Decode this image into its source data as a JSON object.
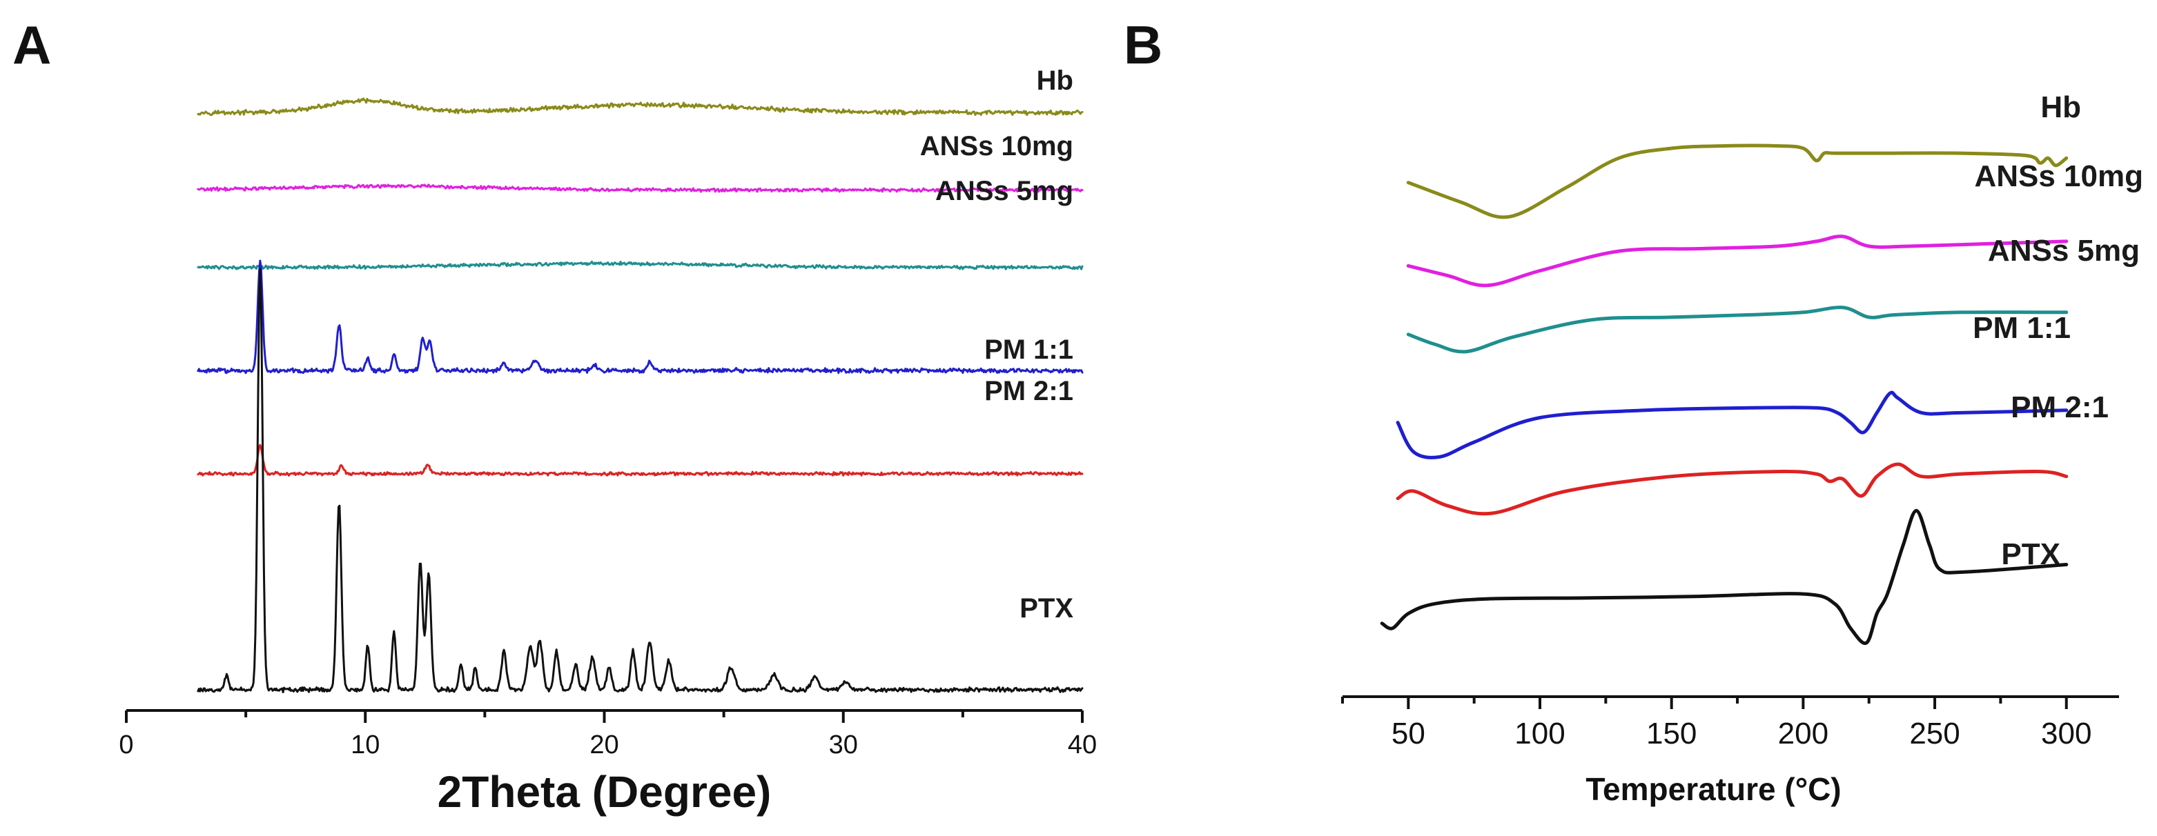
{
  "chart_data": [
    {
      "panel": "A",
      "type": "line",
      "title": "",
      "xlabel": "2Theta (Degree)",
      "ylabel": "",
      "xlim": [
        0,
        40
      ],
      "xticks": [
        "0",
        "10",
        "20",
        "30",
        "40"
      ],
      "y_axis": "none (stacked offset traces)",
      "series": [
        {
          "name": "Hb",
          "color": "#8a8a1a",
          "profile": "amorphous",
          "baseline": 0.895,
          "humps": [
            [
              10,
              1.6,
              0.018
            ],
            [
              22,
              4,
              0.012
            ]
          ],
          "noise": 0.004
        },
        {
          "name": "ANSs  10mg",
          "color": "#e020e0",
          "profile": "amorphous",
          "baseline": 0.775,
          "humps": [
            [
              11,
              4,
              0.006
            ]
          ],
          "noise": 0.003
        },
        {
          "name": "ANSs  5mg",
          "color": "#1f8f8f",
          "profile": "amorphous",
          "baseline": 0.655,
          "humps": [
            [
              20,
              5,
              0.006
            ]
          ],
          "noise": 0.003
        },
        {
          "name": "PM 1:1",
          "color": "#1f1fcf",
          "profile": "crystalline",
          "baseline": 0.495,
          "peaks": [
            [
              5.6,
              0.17,
              0.1
            ],
            [
              8.9,
              0.07,
              0.1
            ],
            [
              10.1,
              0.02,
              0.08
            ],
            [
              11.2,
              0.025,
              0.08
            ],
            [
              12.4,
              0.05,
              0.1
            ],
            [
              12.7,
              0.045,
              0.1
            ],
            [
              15.8,
              0.012,
              0.1
            ],
            [
              17.1,
              0.015,
              0.15
            ],
            [
              19.6,
              0.01,
              0.1
            ],
            [
              21.9,
              0.013,
              0.1
            ]
          ],
          "noise": 0.004
        },
        {
          "name": "PM 2:1",
          "color": "#dd2222",
          "profile": "crystalline",
          "baseline": 0.335,
          "peaks": [
            [
              5.6,
              0.045,
              0.1
            ],
            [
              9.0,
              0.012,
              0.1
            ],
            [
              12.6,
              0.012,
              0.12
            ]
          ],
          "noise": 0.003
        },
        {
          "name": "PTX",
          "color": "#111111",
          "profile": "crystalline",
          "baseline": 0.0,
          "peaks": [
            [
              4.2,
              0.025,
              0.08
            ],
            [
              5.6,
              0.65,
              0.1
            ],
            [
              8.9,
              0.29,
              0.1
            ],
            [
              10.1,
              0.07,
              0.08
            ],
            [
              11.2,
              0.09,
              0.08
            ],
            [
              12.3,
              0.2,
              0.1
            ],
            [
              12.65,
              0.18,
              0.1
            ],
            [
              14.0,
              0.04,
              0.08
            ],
            [
              14.6,
              0.035,
              0.08
            ],
            [
              15.8,
              0.06,
              0.1
            ],
            [
              16.9,
              0.07,
              0.12
            ],
            [
              17.3,
              0.075,
              0.12
            ],
            [
              18.0,
              0.06,
              0.1
            ],
            [
              18.8,
              0.04,
              0.1
            ],
            [
              19.5,
              0.05,
              0.12
            ],
            [
              20.2,
              0.035,
              0.1
            ],
            [
              21.2,
              0.06,
              0.1
            ],
            [
              21.9,
              0.075,
              0.12
            ],
            [
              22.7,
              0.045,
              0.12
            ],
            [
              25.3,
              0.035,
              0.15
            ],
            [
              27.1,
              0.025,
              0.15
            ],
            [
              28.8,
              0.02,
              0.15
            ],
            [
              30.1,
              0.012,
              0.15
            ]
          ],
          "noise": 0.004
        }
      ],
      "labels": [
        {
          "series": "Hb",
          "text": "Hb"
        },
        {
          "series": "ANSs  10mg",
          "text": "ANSs  10mg"
        },
        {
          "series": "ANSs  5mg",
          "text": "ANSs  5mg"
        },
        {
          "series": "PM 1:1",
          "text": "PM 1:1"
        },
        {
          "series": "PM 2:1",
          "text": "PM 2:1"
        },
        {
          "series": "PTX",
          "text": "PTX"
        }
      ]
    },
    {
      "panel": "B",
      "type": "line",
      "title": "",
      "xlabel": "Temperature (°C)",
      "ylabel": "",
      "xlim": [
        25,
        320
      ],
      "xticks": [
        "50",
        "100",
        "150",
        "200",
        "250",
        "300"
      ],
      "y_axis": "none (stacked offset traces)",
      "series": [
        {
          "name": "Hb",
          "color": "#8a8a1a",
          "baseline": 0.93,
          "x": [
            50,
            70,
            88,
            110,
            130,
            150,
            170,
            190,
            200,
            205,
            208,
            212,
            230,
            260,
            285,
            290,
            293,
            296,
            300
          ],
          "y": [
            0.93,
            0.89,
            0.86,
            0.92,
            0.98,
            1.0,
            1.005,
            1.005,
            1.0,
            0.975,
            0.99,
            0.99,
            0.99,
            0.99,
            0.985,
            0.97,
            0.98,
            0.965,
            0.98
          ]
        },
        {
          "name": "ANSs 10mg",
          "color": "#e020e0",
          "x": [
            50,
            65,
            80,
            100,
            130,
            160,
            190,
            205,
            215,
            225,
            240,
            270,
            300
          ],
          "y": [
            0.76,
            0.74,
            0.72,
            0.75,
            0.79,
            0.795,
            0.8,
            0.81,
            0.82,
            0.8,
            0.8,
            0.805,
            0.81
          ]
        },
        {
          "name": "ANSs  5mg",
          "color": "#1f8f8f",
          "x": [
            50,
            60,
            72,
            90,
            120,
            150,
            180,
            200,
            215,
            225,
            235,
            260,
            300
          ],
          "y": [
            0.62,
            0.6,
            0.585,
            0.615,
            0.65,
            0.655,
            0.66,
            0.665,
            0.675,
            0.655,
            0.66,
            0.665,
            0.665
          ]
        },
        {
          "name": "PM 1:1",
          "color": "#1f1fcf",
          "x": [
            46,
            52,
            62,
            75,
            100,
            140,
            180,
            205,
            213,
            218,
            223,
            228,
            233,
            236,
            245,
            260,
            300
          ],
          "y": [
            0.44,
            0.38,
            0.37,
            0.4,
            0.45,
            0.465,
            0.47,
            0.47,
            0.46,
            0.44,
            0.42,
            0.46,
            0.5,
            0.49,
            0.46,
            0.46,
            0.465
          ]
        },
        {
          "name": "PM  2:1",
          "color": "#dd2222",
          "x": [
            46,
            52,
            65,
            82,
            110,
            150,
            190,
            205,
            210,
            215,
            222,
            228,
            236,
            245,
            260,
            290,
            300
          ],
          "y": [
            0.285,
            0.3,
            0.27,
            0.255,
            0.3,
            0.33,
            0.34,
            0.335,
            0.32,
            0.325,
            0.29,
            0.33,
            0.355,
            0.33,
            0.335,
            0.34,
            0.33
          ]
        },
        {
          "name": "PTX",
          "color": "#111111",
          "x": [
            40,
            44,
            50,
            60,
            80,
            120,
            160,
            200,
            212,
            218,
            224,
            228,
            232,
            238,
            243,
            248,
            252,
            262,
            300
          ],
          "y": [
            0.03,
            0.02,
            0.05,
            0.07,
            0.08,
            0.082,
            0.085,
            0.09,
            0.07,
            0.02,
            -0.01,
            0.05,
            0.09,
            0.19,
            0.26,
            0.19,
            0.14,
            0.135,
            0.15
          ]
        }
      ],
      "labels": [
        {
          "series": "Hb",
          "text": "Hb"
        },
        {
          "series": "ANSs 10mg",
          "text": "ANSs 10mg"
        },
        {
          "series": "ANSs  5mg",
          "text": "ANSs  5mg"
        },
        {
          "series": "PM 1:1",
          "text": "PM 1:1"
        },
        {
          "series": "PM  2:1",
          "text": "PM  2:1"
        },
        {
          "series": "PTX",
          "text": "PTX"
        }
      ]
    }
  ],
  "panels": {
    "a": {
      "letter": "A"
    },
    "b": {
      "letter": "B"
    }
  }
}
